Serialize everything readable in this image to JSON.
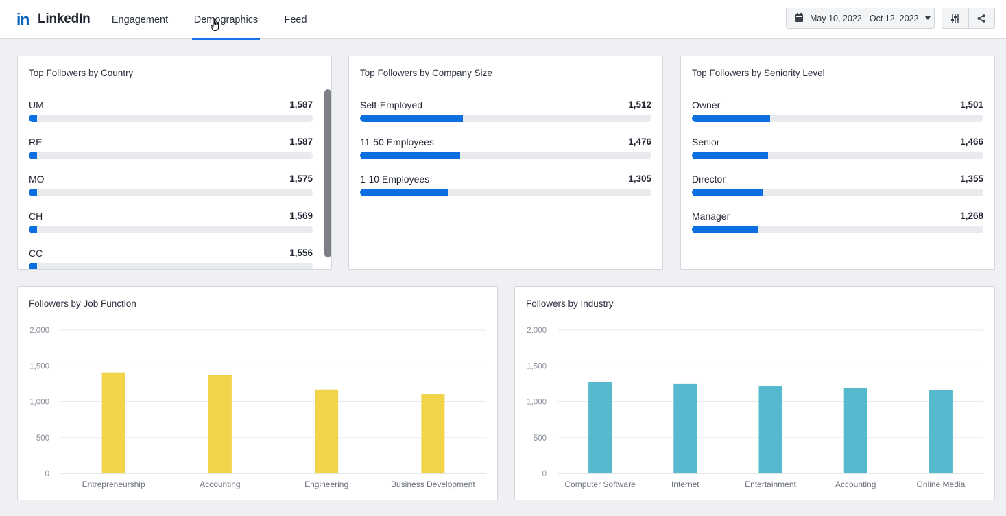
{
  "app": {
    "logo_mark": "in",
    "logo_text": "LinkedIn"
  },
  "tabs": [
    {
      "label": "Engagement"
    },
    {
      "label": "Demographics",
      "active": true
    },
    {
      "label": "Feed"
    }
  ],
  "toolbar": {
    "date_range": "May 10, 2022 - Oct 12, 2022",
    "icons": [
      "calendar-icon",
      "caret-down-icon",
      "sliders-icon",
      "share-icon"
    ]
  },
  "colors": {
    "accent": "#0b6fe0",
    "tab_underline": "#1a73e8",
    "job_bar": "#f2d44a",
    "industry_bar": "#55bace",
    "bar_track": "#e9eaee"
  },
  "country": {
    "title": "Top Followers by Country",
    "items": [
      {
        "label": "UM",
        "value": "1,587",
        "fill": 0.03
      },
      {
        "label": "RE",
        "value": "1,587",
        "fill": 0.03
      },
      {
        "label": "MO",
        "value": "1,575",
        "fill": 0.03
      },
      {
        "label": "CH",
        "value": "1,569",
        "fill": 0.03
      },
      {
        "label": "CC",
        "value": "1,556",
        "fill": 0.03
      }
    ]
  },
  "company_size": {
    "title": "Top Followers by Company Size",
    "items": [
      {
        "label": "Self-Employed",
        "value": "1,512",
        "fill": 0.353
      },
      {
        "label": "11-50 Employees",
        "value": "1,476",
        "fill": 0.344
      },
      {
        "label": "1-10 Employees",
        "value": "1,305",
        "fill": 0.304
      }
    ]
  },
  "seniority": {
    "title": "Top Followers by Seniority Level",
    "items": [
      {
        "label": "Owner",
        "value": "1,501",
        "fill": 0.268
      },
      {
        "label": "Senior",
        "value": "1,466",
        "fill": 0.262
      },
      {
        "label": "Director",
        "value": "1,355",
        "fill": 0.242
      },
      {
        "label": "Manager",
        "value": "1,268",
        "fill": 0.226
      }
    ]
  },
  "chart_data": [
    {
      "type": "bar",
      "title": "Followers by Job Function",
      "categories": [
        "Entrepreneurship",
        "Accounting",
        "Engineering",
        "Business Development"
      ],
      "values": [
        1410,
        1375,
        1170,
        1110
      ],
      "yticks": [
        "0",
        "500",
        "1,000",
        "1,500",
        "2,000"
      ],
      "ylim": [
        0,
        2000
      ],
      "color": "#f2d44a",
      "grid": true
    },
    {
      "type": "bar",
      "title": "Followers by Industry",
      "categories": [
        "Computer Software",
        "Internet",
        "Entertainment",
        "Accounting",
        "Online Media"
      ],
      "values": [
        1280,
        1255,
        1215,
        1190,
        1165
      ],
      "yticks": [
        "0",
        "500",
        "1,000",
        "1,500",
        "2,000"
      ],
      "ylim": [
        0,
        2000
      ],
      "color": "#55bace",
      "grid": true
    }
  ]
}
